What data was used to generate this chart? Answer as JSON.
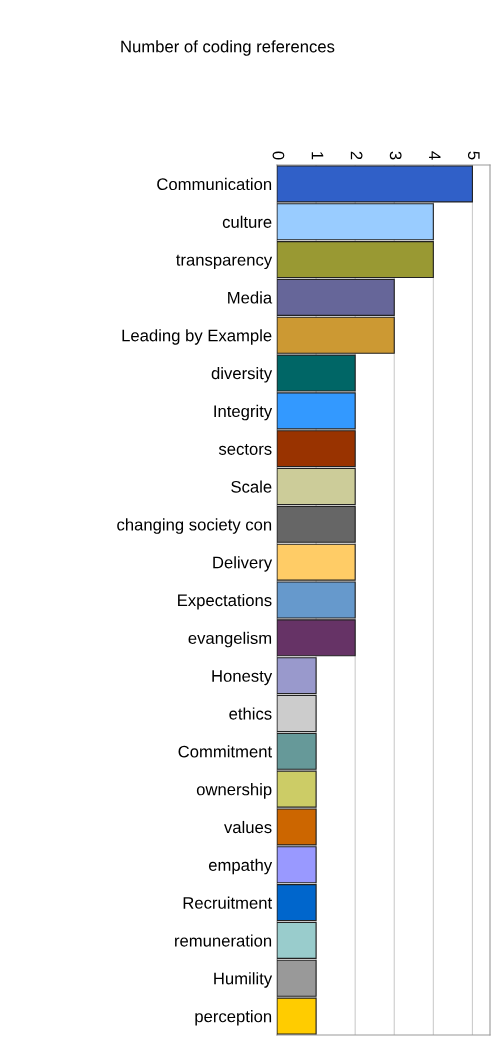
{
  "chart_data": {
    "type": "bar",
    "orientation": "horizontal",
    "title": "Number of coding references",
    "categories": [
      "Communication",
      "culture",
      "transparency",
      "Media",
      "Leading by Example",
      "diversity",
      "Integrity",
      "sectors",
      "Scale",
      "changing society con",
      "Delivery",
      "Expectations",
      "evangelism",
      "Honesty",
      "ethics",
      "Commitment",
      "ownership",
      "values",
      "empathy",
      "Recruitment",
      "remuneration",
      "Humility",
      "perception"
    ],
    "values": [
      5,
      4,
      4,
      3,
      3,
      2,
      2,
      2,
      2,
      2,
      2,
      2,
      2,
      1,
      1,
      1,
      1,
      1,
      1,
      1,
      1,
      1,
      1
    ],
    "colors": [
      "#3060c8",
      "#99ccff",
      "#999933",
      "#666699",
      "#cc9933",
      "#006666",
      "#3399ff",
      "#993300",
      "#cccc99",
      "#666666",
      "#ffcc66",
      "#6699cc",
      "#663366",
      "#9999cc",
      "#cccccc",
      "#669999",
      "#cccc66",
      "#cc6600",
      "#9999ff",
      "#0066cc",
      "#99cccc",
      "#999999",
      "#ffcc00"
    ],
    "xlim": [
      0,
      5.45
    ],
    "xticks": [
      0,
      1,
      2,
      3,
      4,
      5
    ],
    "grid": "x"
  }
}
